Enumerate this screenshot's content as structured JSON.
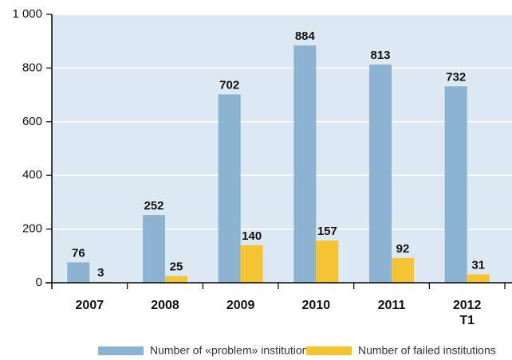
{
  "chart_data": {
    "type": "bar",
    "categories": [
      "2007",
      "2008",
      "2009",
      "2010",
      "2011",
      "2012\nT1"
    ],
    "series": [
      {
        "name": "Number of «problem» institutions",
        "color": "#8cb3d1",
        "values": [
          76,
          252,
          702,
          884,
          813,
          732
        ]
      },
      {
        "name": "Number of failed institutions",
        "color": "#f5c432",
        "values": [
          3,
          25,
          140,
          157,
          92,
          31
        ]
      }
    ],
    "ylim": [
      0,
      1000
    ],
    "yticks": [
      0,
      200,
      400,
      600,
      800,
      {
        "value": 1000,
        "label": "1 000"
      }
    ],
    "grid": true
  }
}
